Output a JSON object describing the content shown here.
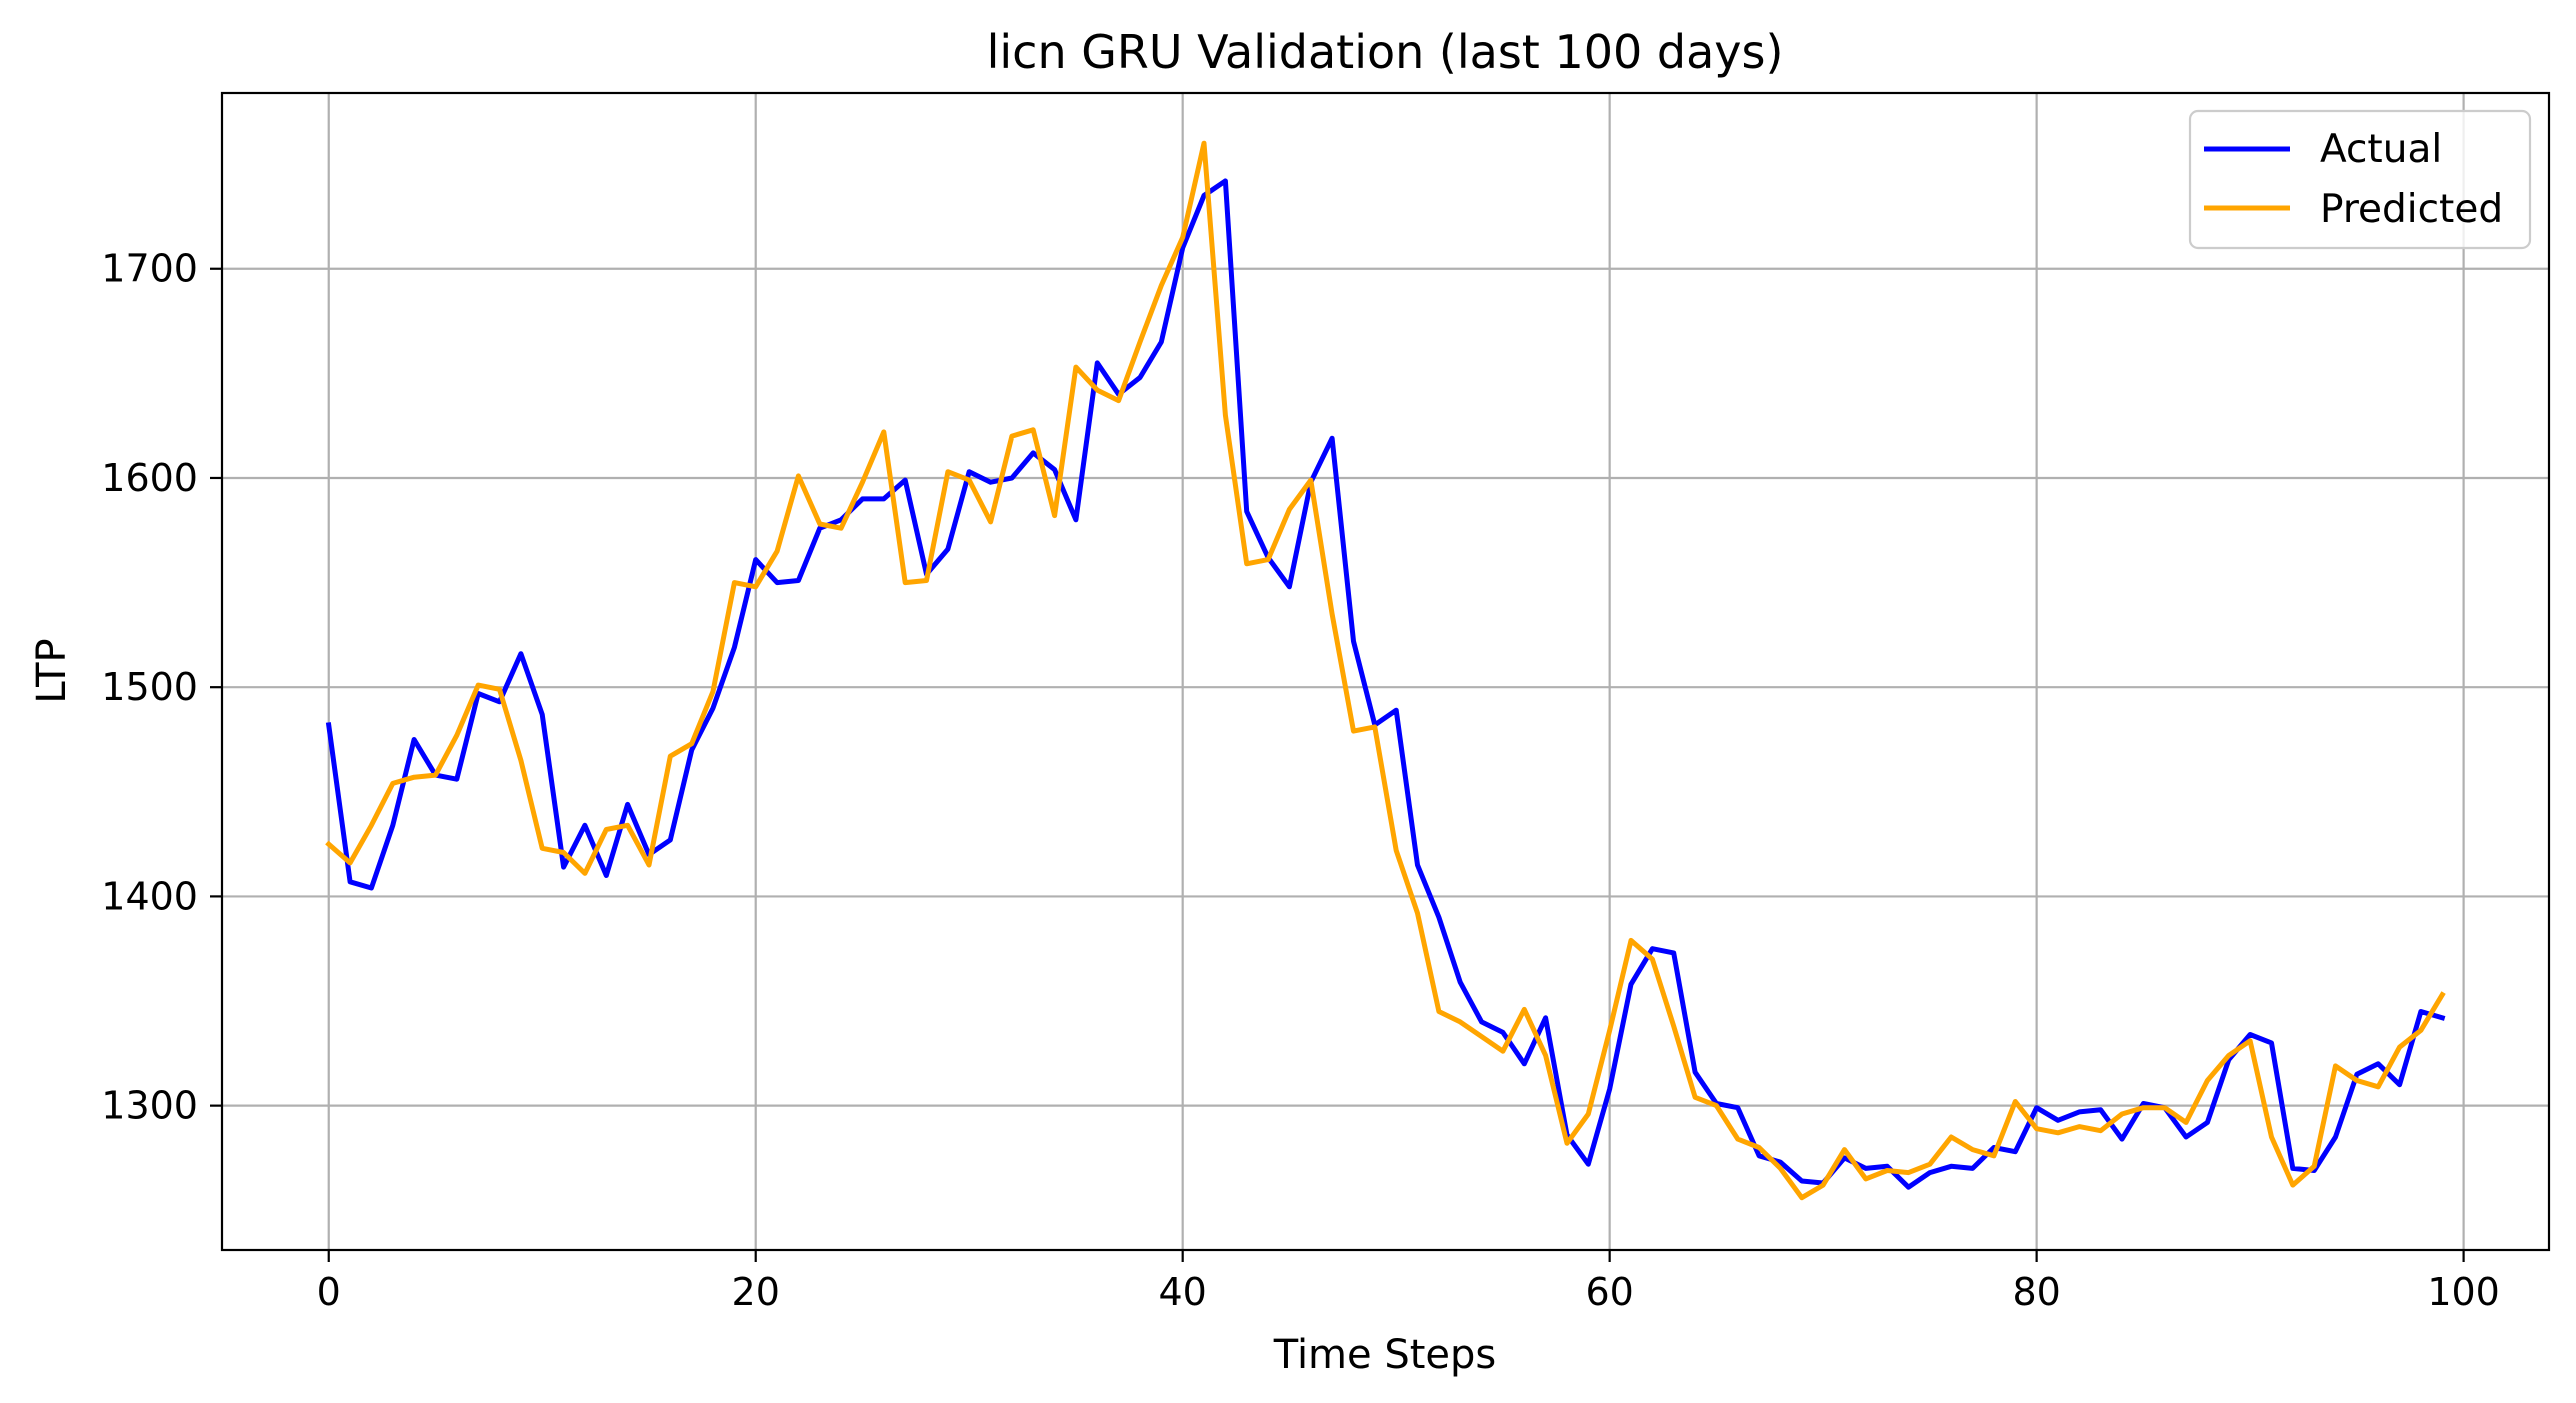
{
  "chart_data": {
    "type": "line",
    "title": "licn GRU Validation (last 100 days)",
    "xlabel": "Time Steps",
    "ylabel": "LTP",
    "xlim": [
      -5,
      104
    ],
    "ylim": [
      1231,
      1784
    ],
    "xticks": [
      0,
      20,
      40,
      60,
      80,
      100
    ],
    "yticks": [
      1300,
      1400,
      1500,
      1600,
      1700
    ],
    "grid": true,
    "legend_position": "top-right",
    "x": [
      0,
      1,
      2,
      3,
      4,
      5,
      6,
      7,
      8,
      9,
      10,
      11,
      12,
      13,
      14,
      15,
      16,
      17,
      18,
      19,
      20,
      21,
      22,
      23,
      24,
      25,
      26,
      27,
      28,
      29,
      30,
      31,
      32,
      33,
      34,
      35,
      36,
      37,
      38,
      39,
      40,
      41,
      42,
      43,
      44,
      45,
      46,
      47,
      48,
      49,
      50,
      51,
      52,
      53,
      54,
      55,
      56,
      57,
      58,
      59,
      60,
      61,
      62,
      63,
      64,
      65,
      66,
      67,
      68,
      69,
      70,
      71,
      72,
      73,
      74,
      75,
      76,
      77,
      78,
      79,
      80,
      81,
      82,
      83,
      84,
      85,
      86,
      87,
      88,
      89,
      90,
      91,
      92,
      93,
      94,
      95,
      96,
      97,
      98,
      99
    ],
    "series": [
      {
        "name": "Actual",
        "color": "#0000ff",
        "values": [
          1482,
          1407,
          1404,
          1434,
          1475,
          1458,
          1456,
          1497,
          1493,
          1516,
          1487,
          1414,
          1434,
          1410,
          1444,
          1420,
          1427,
          1470,
          1490,
          1519,
          1561,
          1550,
          1551,
          1576,
          1580,
          1590,
          1590,
          1599,
          1554,
          1566,
          1603,
          1598,
          1600,
          1612,
          1604,
          1580,
          1655,
          1640,
          1648,
          1665,
          1710,
          1735,
          1742,
          1584,
          1562,
          1548,
          1598,
          1619,
          1522,
          1482,
          1489,
          1415,
          1390,
          1359,
          1340,
          1335,
          1320,
          1342,
          1286,
          1272,
          1308,
          1358,
          1375,
          1373,
          1316,
          1301,
          1299,
          1276,
          1273,
          1264,
          1263,
          1275,
          1270,
          1271,
          1261,
          1268,
          1271,
          1270,
          1280,
          1278,
          1299,
          1293,
          1297,
          1298,
          1284,
          1301,
          1299,
          1285,
          1292,
          1322,
          1334,
          1330,
          1270,
          1269,
          1285,
          1315,
          1320,
          1310,
          1345,
          1342
        ]
      },
      {
        "name": "Predicted",
        "color": "#ffa500",
        "values": [
          1425,
          1416,
          1434,
          1454,
          1457,
          1458,
          1477,
          1501,
          1499,
          1465,
          1423,
          1421,
          1411,
          1432,
          1434,
          1415,
          1467,
          1473,
          1498,
          1550,
          1548,
          1565,
          1601,
          1578,
          1576,
          1598,
          1622,
          1550,
          1551,
          1603,
          1599,
          1579,
          1620,
          1623,
          1582,
          1653,
          1642,
          1637,
          1665,
          1692,
          1715,
          1760,
          1630,
          1559,
          1561,
          1585,
          1599,
          1535,
          1479,
          1481,
          1422,
          1392,
          1345,
          1340,
          1333,
          1326,
          1346,
          1324,
          1282,
          1296,
          1336,
          1379,
          1370,
          1338,
          1304,
          1300,
          1284,
          1280,
          1270,
          1256,
          1262,
          1279,
          1265,
          1269,
          1268,
          1272,
          1285,
          1279,
          1276,
          1302,
          1289,
          1287,
          1290,
          1288,
          1296,
          1299,
          1299,
          1292,
          1312,
          1324,
          1331,
          1285,
          1262,
          1271,
          1319,
          1312,
          1309,
          1328,
          1336,
          1353
        ]
      }
    ]
  }
}
